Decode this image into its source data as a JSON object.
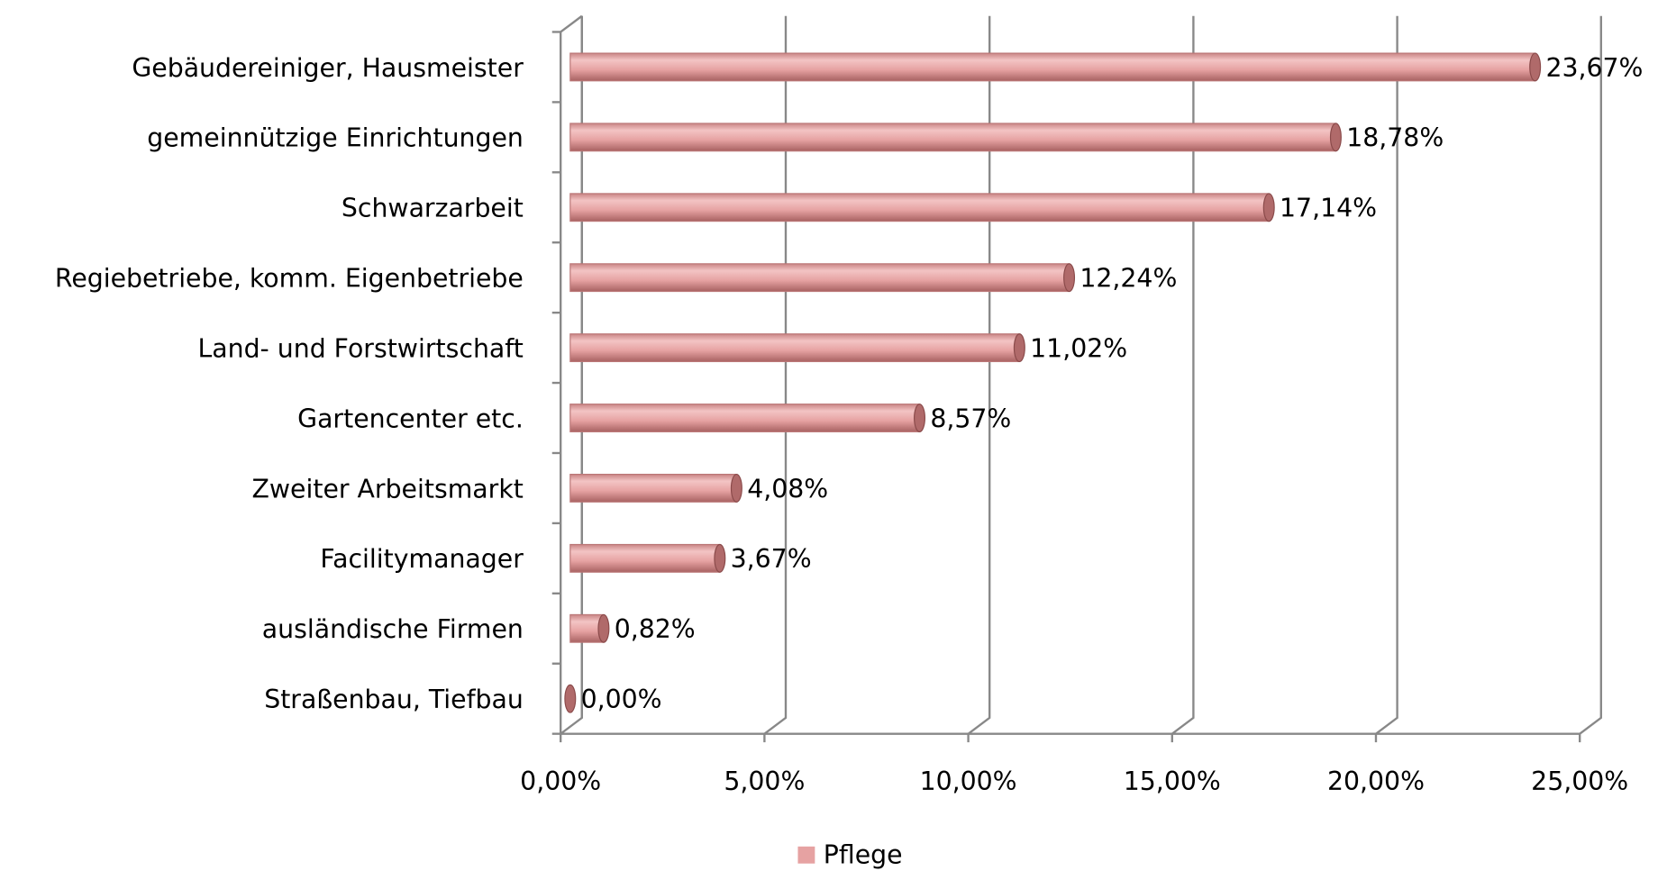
{
  "chart_data": {
    "type": "bar",
    "orientation": "horizontal",
    "categories": [
      "Gebäudereiniger, Hausmeister",
      "gemeinnützige Einrichtungen",
      "Schwarzarbeit",
      "Regiebetriebe, komm. Eigenbetriebe",
      "Land- und Forstwirtschaft",
      "Gartencenter etc.",
      "Zweiter Arbeitsmarkt",
      "Facilitymanager",
      "ausländische Firmen",
      "Straßenbau, Tiefbau"
    ],
    "series": [
      {
        "name": "Pflege",
        "color": "#e6a2a2",
        "values": [
          23.67,
          18.78,
          17.14,
          12.24,
          11.02,
          8.57,
          4.08,
          3.67,
          0.82,
          0
        ],
        "value_labels": [
          "23,67%",
          "18,78%",
          "17,14%",
          "12,24%",
          "11,02%",
          "8,57%",
          "4,08%",
          "3,67%",
          "0,82%",
          "0,00%"
        ]
      }
    ],
    "xlim": [
      0,
      25
    ],
    "xticks": [
      {
        "value": 0,
        "label": "0,00%"
      },
      {
        "value": 5,
        "label": "5,00%"
      },
      {
        "value": 10,
        "label": "10,00%"
      },
      {
        "value": 15,
        "label": "15,00%"
      },
      {
        "value": 20,
        "label": "20,00%"
      },
      {
        "value": 25,
        "label": "25,00%"
      }
    ],
    "grid": true,
    "legend": "bottom"
  }
}
